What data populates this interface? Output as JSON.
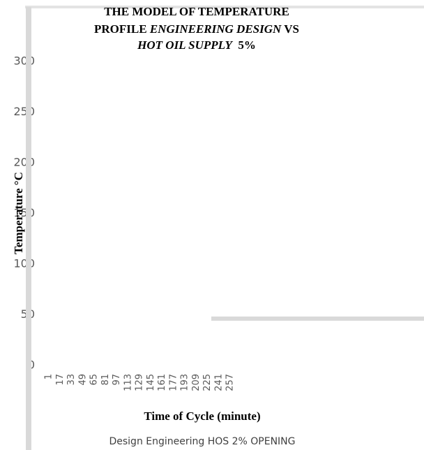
{
  "chart_data": {
    "type": "line",
    "title": [
      [
        "THE MODEL OF TEMPERATURE"
      ],
      [
        "PROFILE ",
        "ENGINEERING DESIGN",
        " VS"
      ],
      [
        "HOT OIL SUPPLY",
        "  5%"
      ]
    ],
    "y_label": "Temperature °C",
    "x_label": "Time of Cycle (minute)",
    "categories": [
      "1",
      "17",
      "33",
      "49",
      "65",
      "81",
      "97",
      "113",
      "129",
      "145",
      "161",
      "177",
      "193",
      "209",
      "225",
      "241",
      "257"
    ],
    "series": [
      {
        "name": "Design Engineering HOS 2% OPENING",
        "values": [
          null,
          null,
          null,
          null,
          null,
          null,
          null,
          null,
          null,
          null,
          null,
          null,
          null,
          null,
          null,
          null,
          null
        ]
      }
    ],
    "ylim": [
      0,
      300
    ],
    "yticks": [
      0,
      50,
      100,
      150,
      200,
      250,
      300
    ]
  }
}
